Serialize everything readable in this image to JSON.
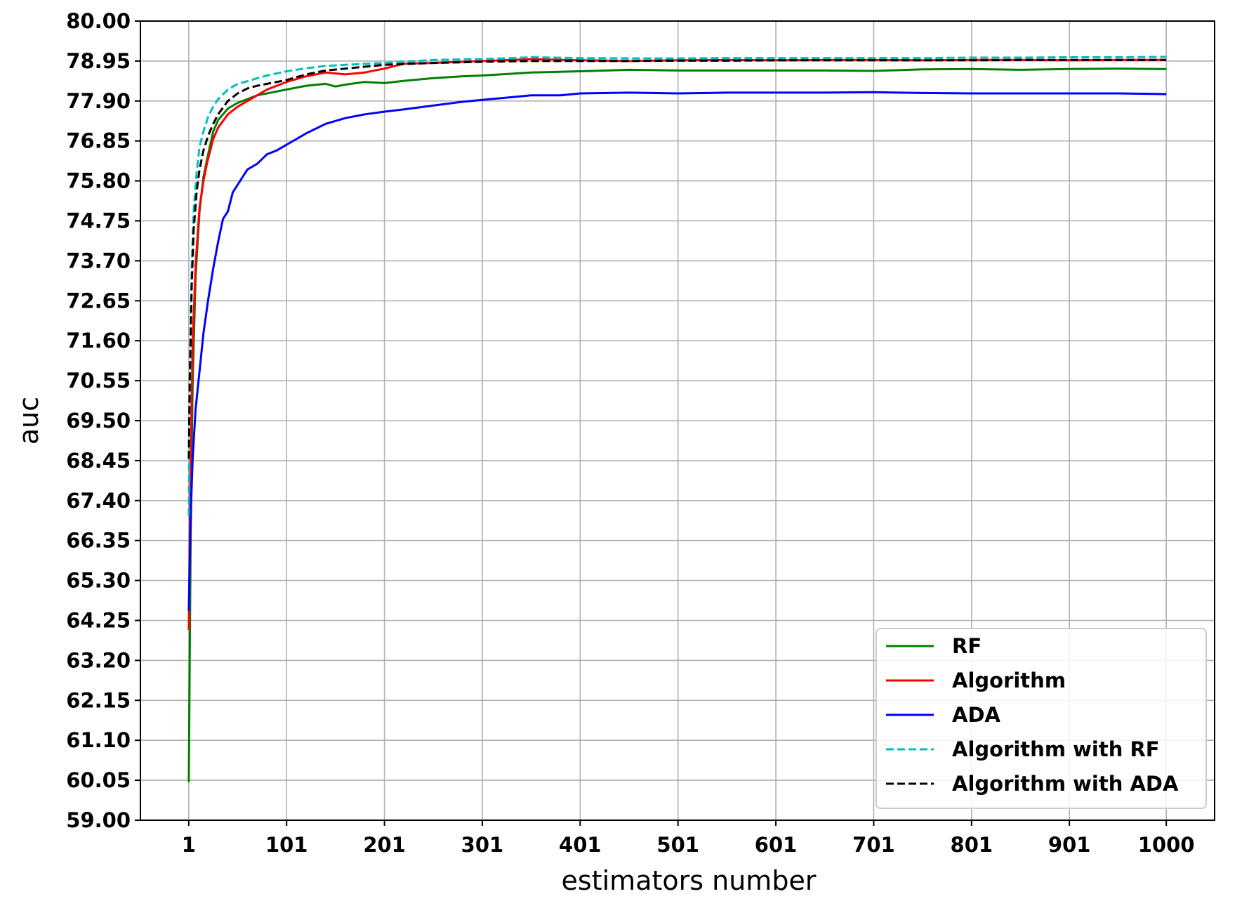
{
  "chart_data": {
    "type": "line",
    "title": "",
    "xlabel": "estimators number",
    "ylabel": "auc",
    "xlim": [
      1,
      1000
    ],
    "ylim": [
      59.0,
      80.0
    ],
    "xticks": [
      "1",
      "101",
      "201",
      "301",
      "401",
      "501",
      "601",
      "701",
      "801",
      "901",
      "1000"
    ],
    "yticks": [
      "59.00",
      "60.05",
      "61.10",
      "62.15",
      "63.20",
      "64.25",
      "65.30",
      "66.35",
      "67.40",
      "68.45",
      "69.50",
      "70.55",
      "71.60",
      "72.65",
      "73.70",
      "74.75",
      "75.80",
      "76.85",
      "77.90",
      "78.95",
      "80.00"
    ],
    "grid": true,
    "legend_position": "lower-right",
    "series": [
      {
        "name": "RF",
        "color": "#008000",
        "dash": "solid",
        "x": [
          1,
          3,
          5,
          8,
          12,
          16,
          20,
          26,
          31,
          41,
          51,
          61,
          71,
          81,
          101,
          121,
          141,
          151,
          161,
          181,
          201,
          221,
          251,
          281,
          301,
          351,
          401,
          451,
          501,
          551,
          601,
          651,
          701,
          751,
          801,
          851,
          901,
          951,
          1000
        ],
        "y": [
          60.0,
          66.5,
          70.5,
          73.3,
          75.0,
          75.9,
          76.4,
          77.1,
          77.4,
          77.7,
          77.85,
          77.95,
          78.05,
          78.1,
          78.2,
          78.3,
          78.35,
          78.28,
          78.33,
          78.4,
          78.37,
          78.43,
          78.5,
          78.55,
          78.57,
          78.65,
          78.68,
          78.72,
          78.7,
          78.7,
          78.7,
          78.7,
          78.69,
          78.73,
          78.74,
          78.72,
          78.74,
          78.75,
          78.74
        ]
      },
      {
        "name": "Algorithm",
        "color": "#ff0000",
        "dash": "solid",
        "x": [
          1,
          3,
          5,
          8,
          12,
          16,
          20,
          26,
          31,
          41,
          51,
          61,
          71,
          81,
          101,
          121,
          141,
          161,
          181,
          201,
          221,
          251,
          301,
          351,
          401,
          451,
          501,
          551,
          601,
          651,
          701,
          751,
          801,
          851,
          901,
          951,
          1000
        ],
        "y": [
          64.0,
          68.5,
          71.5,
          73.6,
          75.1,
          75.8,
          76.3,
          76.9,
          77.2,
          77.55,
          77.75,
          77.9,
          78.05,
          78.2,
          78.4,
          78.55,
          78.65,
          78.6,
          78.65,
          78.75,
          78.88,
          78.9,
          78.95,
          79.0,
          78.97,
          78.95,
          78.97,
          78.98,
          78.97,
          78.98,
          78.98,
          78.97,
          78.98,
          78.98,
          78.97,
          78.98,
          78.98
        ]
      },
      {
        "name": "ADA",
        "color": "#0000ff",
        "dash": "solid",
        "x": [
          1,
          3,
          5,
          8,
          12,
          16,
          21,
          26,
          31,
          36,
          41,
          46,
          51,
          61,
          71,
          81,
          91,
          101,
          111,
          121,
          141,
          161,
          181,
          201,
          221,
          251,
          281,
          301,
          331,
          351,
          381,
          401,
          451,
          501,
          551,
          601,
          651,
          701,
          751,
          801,
          851,
          901,
          951,
          1000
        ],
        "y": [
          64.5,
          67.0,
          68.5,
          69.8,
          70.8,
          71.8,
          72.7,
          73.5,
          74.2,
          74.8,
          75.0,
          75.5,
          75.7,
          76.1,
          76.25,
          76.5,
          76.6,
          76.75,
          76.9,
          77.05,
          77.3,
          77.45,
          77.55,
          77.62,
          77.68,
          77.78,
          77.88,
          77.93,
          78.0,
          78.05,
          78.05,
          78.1,
          78.12,
          78.1,
          78.12,
          78.12,
          78.12,
          78.13,
          78.11,
          78.1,
          78.1,
          78.1,
          78.1,
          78.08
        ]
      },
      {
        "name": "Algorithm with RF",
        "color": "#00bfbf",
        "dash": "dashed",
        "x": [
          1,
          2,
          4,
          6,
          9,
          12,
          16,
          21,
          26,
          31,
          41,
          51,
          61,
          71,
          81,
          101,
          121,
          141,
          161,
          201,
          251,
          301,
          351,
          401,
          451,
          501,
          551,
          601,
          651,
          701,
          751,
          801,
          851,
          901,
          951,
          1000
        ],
        "y": [
          67.0,
          70.0,
          73.5,
          75.0,
          76.0,
          76.7,
          77.1,
          77.5,
          77.75,
          77.95,
          78.2,
          78.35,
          78.42,
          78.5,
          78.57,
          78.68,
          78.76,
          78.82,
          78.85,
          78.9,
          78.98,
          79.0,
          79.05,
          79.03,
          79.02,
          79.02,
          79.03,
          79.03,
          79.03,
          79.03,
          79.03,
          79.04,
          79.04,
          79.05,
          79.05,
          79.06
        ]
      },
      {
        "name": "Algorithm with ADA",
        "color": "#000000",
        "dash": "dashed",
        "x": [
          1,
          2,
          4,
          6,
          9,
          12,
          16,
          21,
          26,
          31,
          41,
          51,
          61,
          71,
          81,
          101,
          121,
          141,
          161,
          201,
          251,
          301,
          351,
          401,
          451,
          501,
          551,
          601,
          651,
          701,
          751,
          801,
          851,
          901,
          951,
          1000
        ],
        "y": [
          68.5,
          70.5,
          73.0,
          74.5,
          75.5,
          76.1,
          76.6,
          77.0,
          77.3,
          77.55,
          77.9,
          78.1,
          78.23,
          78.3,
          78.35,
          78.45,
          78.6,
          78.7,
          78.75,
          78.85,
          78.9,
          78.93,
          78.95,
          78.95,
          78.95,
          78.96,
          78.96,
          78.97,
          78.97,
          78.97,
          78.97,
          78.97,
          78.98,
          78.98,
          78.98,
          78.98
        ]
      }
    ]
  }
}
